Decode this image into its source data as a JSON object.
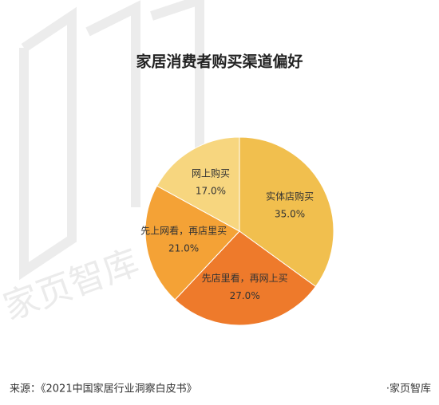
{
  "chart_data": {
    "type": "pie",
    "title": "家居消费者购买渠道偏好",
    "categories": [
      "实体店购买",
      "先店里看，再网上买",
      "先上网看，再店里买",
      "网上购买"
    ],
    "values": [
      35,
      27,
      21,
      17
    ],
    "value_labels": [
      "35.0%",
      "27.0%",
      "21.0%",
      "17.0%"
    ],
    "colors": [
      "#f1bf4e",
      "#ee7a2b",
      "#f4a236",
      "#f7d67f"
    ]
  },
  "watermark": "家页智库",
  "source": "来源：《2021中国家居行业洞察白皮书》",
  "brand": "·家页智库"
}
